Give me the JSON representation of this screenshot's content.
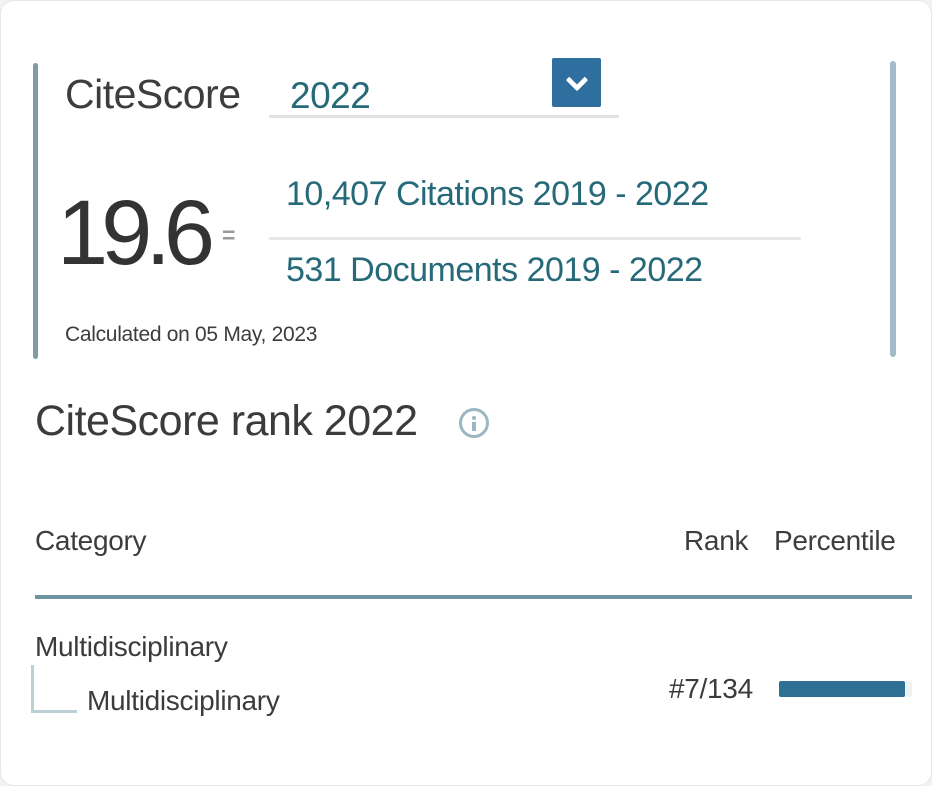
{
  "citescore_panel": {
    "title": "CiteScore",
    "year_dropdown": {
      "value": "2022"
    },
    "score": "19.6",
    "equals_sign": "=",
    "citations_link": "10,407 Citations 2019 - 2022",
    "documents_link": "531 Documents 2019 - 2022",
    "calculated_on": "Calculated on 05 May, 2023"
  },
  "rank_section": {
    "title": "CiteScore rank 2022",
    "table": {
      "headers": {
        "category": "Category",
        "rank": "Rank",
        "percentile": "Percentile"
      },
      "rows": [
        {
          "parent_category": "Multidisciplinary",
          "subcategory": "Multidisciplinary",
          "rank": "#7/134",
          "percentile_percent": 95
        }
      ]
    }
  },
  "colors": {
    "link_teal": "#266a7a",
    "dropdown_blue": "#2f6f9f",
    "percentile_bar": "#2e6f94",
    "accent_line": "#7f9ca6",
    "table_divider": "#6e96a2",
    "text_dark": "#3b3d40"
  }
}
